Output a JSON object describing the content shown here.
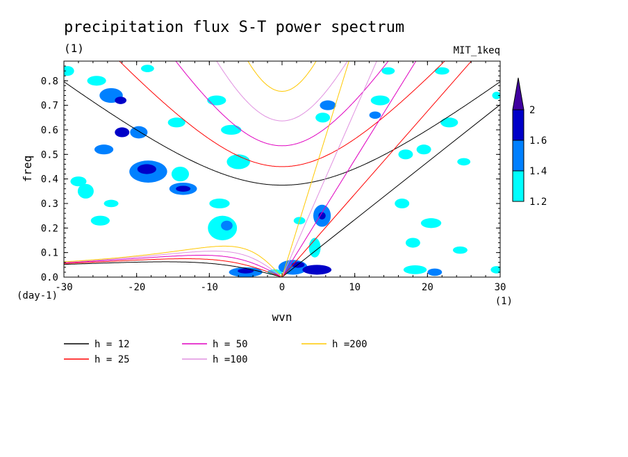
{
  "chart_data": {
    "type": "contour",
    "title": "precipitation flux S-T power spectrum",
    "subtitle_units": "(1)",
    "dataset_label": "MIT_1keq",
    "xlabel": "wvn",
    "ylabel": "freq",
    "x_unit_label": "(1)",
    "y_unit_label": "(day-1)",
    "xlim": [
      -30,
      30
    ],
    "ylim": [
      0.0,
      0.88
    ],
    "xticks": [
      -30,
      -20,
      -10,
      0,
      10,
      20,
      30
    ],
    "xtick_labels": [
      "-30",
      "-20",
      "-10",
      "0",
      "10",
      "20",
      "30"
    ],
    "yticks": [
      0.0,
      0.1,
      0.2,
      0.3,
      0.4,
      0.5,
      0.6,
      0.7,
      0.8
    ],
    "ytick_labels": [
      "0.0",
      "0.1",
      "0.2",
      "0.3",
      "0.4",
      "0.5",
      "0.6",
      "0.7",
      "0.8"
    ],
    "colorbar": {
      "levels": [
        1.2,
        1.4,
        1.6,
        2.0
      ],
      "level_labels": [
        "1.2",
        "1.4",
        "1.6",
        "2"
      ],
      "colors": [
        "#00ffff",
        "#0080ff",
        "#0000c8",
        "#4000a0"
      ]
    },
    "dispersion_curves": [
      {
        "name": "h = 12",
        "h": 12,
        "color": "#000000"
      },
      {
        "name": "h = 25",
        "h": 25,
        "color": "#ff0000"
      },
      {
        "name": "h = 50",
        "h": 50,
        "color": "#e000c0"
      },
      {
        "name": "h =100",
        "h": 100,
        "color": "#e090e0"
      },
      {
        "name": "h =200",
        "h": 200,
        "color": "#ffc800"
      }
    ],
    "contour_blobs": [
      {
        "x": -29.5,
        "y": 0.84,
        "rx": 0.9,
        "ry": 0.02,
        "level": 0
      },
      {
        "x": -25.5,
        "y": 0.8,
        "rx": 1.3,
        "ry": 0.02,
        "level": 0
      },
      {
        "x": -23.5,
        "y": 0.74,
        "rx": 1.6,
        "ry": 0.03,
        "level": 1
      },
      {
        "x": -22.2,
        "y": 0.72,
        "rx": 0.8,
        "ry": 0.015,
        "level": 2
      },
      {
        "x": -18.5,
        "y": 0.85,
        "rx": 0.9,
        "ry": 0.015,
        "level": 0
      },
      {
        "x": -19.7,
        "y": 0.59,
        "rx": 1.2,
        "ry": 0.025,
        "level": 1
      },
      {
        "x": -22.0,
        "y": 0.59,
        "rx": 1.0,
        "ry": 0.02,
        "level": 2
      },
      {
        "x": -24.5,
        "y": 0.52,
        "rx": 1.3,
        "ry": 0.02,
        "level": 1
      },
      {
        "x": -18.4,
        "y": 0.43,
        "rx": 2.6,
        "ry": 0.045,
        "level": 1
      },
      {
        "x": -18.6,
        "y": 0.44,
        "rx": 1.3,
        "ry": 0.02,
        "level": 2
      },
      {
        "x": -14.0,
        "y": 0.42,
        "rx": 1.2,
        "ry": 0.03,
        "level": 0
      },
      {
        "x": -13.6,
        "y": 0.36,
        "rx": 1.9,
        "ry": 0.025,
        "level": 1
      },
      {
        "x": -13.6,
        "y": 0.36,
        "rx": 1.0,
        "ry": 0.012,
        "level": 2
      },
      {
        "x": -28.0,
        "y": 0.39,
        "rx": 1.1,
        "ry": 0.02,
        "level": 0
      },
      {
        "x": -27.0,
        "y": 0.35,
        "rx": 1.1,
        "ry": 0.03,
        "level": 0
      },
      {
        "x": -25.0,
        "y": 0.23,
        "rx": 1.3,
        "ry": 0.02,
        "level": 0
      },
      {
        "x": -23.5,
        "y": 0.3,
        "rx": 1.0,
        "ry": 0.015,
        "level": 0
      },
      {
        "x": -14.5,
        "y": 0.63,
        "rx": 1.2,
        "ry": 0.02,
        "level": 0
      },
      {
        "x": -9.0,
        "y": 0.72,
        "rx": 1.3,
        "ry": 0.02,
        "level": 0
      },
      {
        "x": -7.0,
        "y": 0.6,
        "rx": 1.4,
        "ry": 0.02,
        "level": 0
      },
      {
        "x": -6.0,
        "y": 0.47,
        "rx": 1.6,
        "ry": 0.03,
        "level": 0
      },
      {
        "x": -8.6,
        "y": 0.3,
        "rx": 1.4,
        "ry": 0.02,
        "level": 0
      },
      {
        "x": -8.2,
        "y": 0.2,
        "rx": 2.0,
        "ry": 0.05,
        "level": 0
      },
      {
        "x": -7.6,
        "y": 0.21,
        "rx": 0.8,
        "ry": 0.02,
        "level": 1
      },
      {
        "x": -5.0,
        "y": 0.02,
        "rx": 2.3,
        "ry": 0.02,
        "level": 1
      },
      {
        "x": -5.0,
        "y": 0.025,
        "rx": 1.1,
        "ry": 0.01,
        "level": 2
      },
      {
        "x": -1.0,
        "y": 0.02,
        "rx": 1.0,
        "ry": 0.012,
        "level": 0
      },
      {
        "x": 1.5,
        "y": 0.04,
        "rx": 2.0,
        "ry": 0.03,
        "level": 1
      },
      {
        "x": 2.2,
        "y": 0.05,
        "rx": 0.9,
        "ry": 0.012,
        "level": 2
      },
      {
        "x": 4.8,
        "y": 0.03,
        "rx": 2.0,
        "ry": 0.02,
        "level": 2
      },
      {
        "x": 6.3,
        "y": 0.7,
        "rx": 1.1,
        "ry": 0.02,
        "level": 1
      },
      {
        "x": 5.6,
        "y": 0.65,
        "rx": 1.0,
        "ry": 0.02,
        "level": 0
      },
      {
        "x": 5.5,
        "y": 0.25,
        "rx": 1.2,
        "ry": 0.045,
        "level": 1
      },
      {
        "x": 5.5,
        "y": 0.25,
        "rx": 0.5,
        "ry": 0.015,
        "level": 2
      },
      {
        "x": 2.4,
        "y": 0.23,
        "rx": 0.8,
        "ry": 0.015,
        "level": 0
      },
      {
        "x": 4.5,
        "y": 0.12,
        "rx": 0.8,
        "ry": 0.04,
        "level": 0
      },
      {
        "x": 13.5,
        "y": 0.72,
        "rx": 1.3,
        "ry": 0.02,
        "level": 0
      },
      {
        "x": 12.8,
        "y": 0.66,
        "rx": 0.8,
        "ry": 0.015,
        "level": 1
      },
      {
        "x": 14.6,
        "y": 0.84,
        "rx": 0.9,
        "ry": 0.015,
        "level": 0
      },
      {
        "x": 19.5,
        "y": 0.52,
        "rx": 1.0,
        "ry": 0.02,
        "level": 0
      },
      {
        "x": 17.0,
        "y": 0.5,
        "rx": 1.0,
        "ry": 0.02,
        "level": 0
      },
      {
        "x": 23.0,
        "y": 0.63,
        "rx": 1.2,
        "ry": 0.02,
        "level": 0
      },
      {
        "x": 22.0,
        "y": 0.84,
        "rx": 1.0,
        "ry": 0.015,
        "level": 0
      },
      {
        "x": 29.5,
        "y": 0.74,
        "rx": 0.6,
        "ry": 0.015,
        "level": 0
      },
      {
        "x": 25.0,
        "y": 0.47,
        "rx": 0.9,
        "ry": 0.015,
        "level": 0
      },
      {
        "x": 16.5,
        "y": 0.3,
        "rx": 1.0,
        "ry": 0.02,
        "level": 0
      },
      {
        "x": 20.5,
        "y": 0.22,
        "rx": 1.4,
        "ry": 0.02,
        "level": 0
      },
      {
        "x": 18.0,
        "y": 0.14,
        "rx": 1.0,
        "ry": 0.02,
        "level": 0
      },
      {
        "x": 24.5,
        "y": 0.11,
        "rx": 1.0,
        "ry": 0.015,
        "level": 0
      },
      {
        "x": 18.3,
        "y": 0.03,
        "rx": 1.6,
        "ry": 0.018,
        "level": 0
      },
      {
        "x": 21.0,
        "y": 0.02,
        "rx": 1.0,
        "ry": 0.015,
        "level": 1
      },
      {
        "x": 29.5,
        "y": 0.03,
        "rx": 0.8,
        "ry": 0.015,
        "level": 0
      }
    ]
  }
}
